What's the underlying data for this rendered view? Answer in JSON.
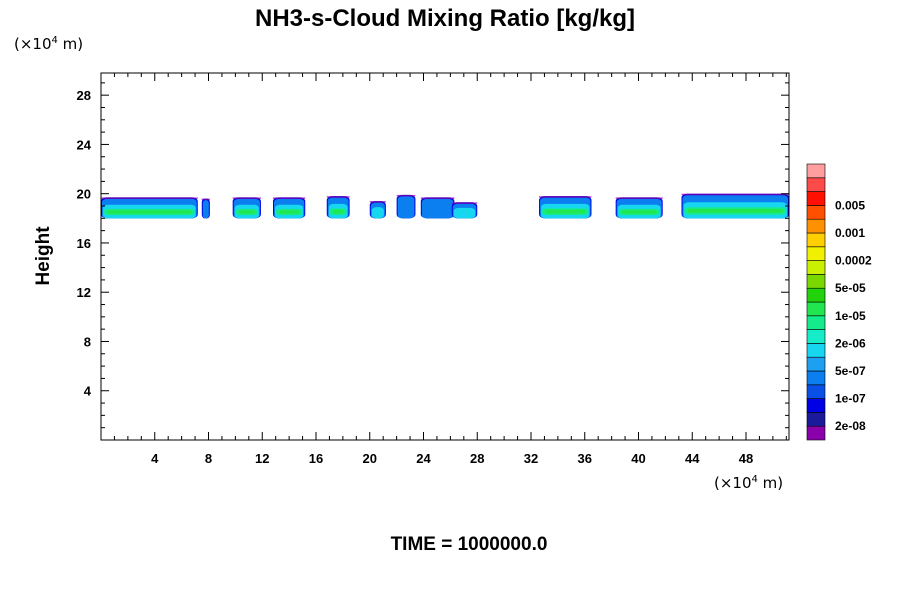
{
  "chart_data": {
    "type": "heatmap",
    "title": "NH3-s-Cloud Mixing Ratio [kg/kg]",
    "ylabel": "Height",
    "x_unit_prefix": "(×10",
    "x_unit_exp": "4",
    "x_unit_suffix": " m)",
    "y_unit_prefix": "(×10",
    "y_unit_exp": "4",
    "y_unit_suffix": " m)",
    "xlim": [
      0,
      51.2
    ],
    "ylim": [
      0,
      29.8
    ],
    "xticks": [
      4,
      8,
      12,
      16,
      20,
      24,
      28,
      32,
      36,
      40,
      44,
      48
    ],
    "yticks": [
      4,
      8,
      12,
      16,
      20,
      24,
      28
    ],
    "time_label": "TIME = 1000000.0",
    "colorbar": {
      "colors": [
        "#8a00aa",
        "#1a1a9a",
        "#0000e6",
        "#0b50e6",
        "#0b7ef0",
        "#1ea0f0",
        "#16d6f0",
        "#16ecc8",
        "#14ec8c",
        "#22e650",
        "#22d20a",
        "#7ad800",
        "#c8f000",
        "#f0f000",
        "#ffd000",
        "#ff9000",
        "#ff5000",
        "#ff1000",
        "#ff4a4a",
        "#ff9e9e"
      ],
      "labels": [
        {
          "index": 1,
          "text": "2e-08"
        },
        {
          "index": 3,
          "text": "1e-07"
        },
        {
          "index": 5,
          "text": "5e-07"
        },
        {
          "index": 7,
          "text": "2e-06"
        },
        {
          "index": 9,
          "text": "1e-05"
        },
        {
          "index": 11,
          "text": "5e-05"
        },
        {
          "index": 13,
          "text": "0.0002"
        },
        {
          "index": 15,
          "text": "0.001"
        },
        {
          "index": 17,
          "text": "0.005"
        }
      ]
    },
    "cloud_blobs": [
      {
        "x0": 0.0,
        "x1": 7.2,
        "ytop": 19.7,
        "core": 2
      },
      {
        "x0": 7.5,
        "x1": 8.1,
        "ytop": 19.6,
        "core": 0
      },
      {
        "x0": 9.8,
        "x1": 11.9,
        "ytop": 19.7,
        "core": 2
      },
      {
        "x0": 12.8,
        "x1": 15.2,
        "ytop": 19.7,
        "core": 2
      },
      {
        "x0": 16.8,
        "x1": 18.5,
        "ytop": 19.8,
        "core": 2
      },
      {
        "x0": 20.0,
        "x1": 21.2,
        "ytop": 19.4,
        "core": 1
      },
      {
        "x0": 22.0,
        "x1": 23.4,
        "ytop": 19.9,
        "core": 0
      },
      {
        "x0": 23.8,
        "x1": 26.3,
        "ytop": 19.7,
        "core": 0
      },
      {
        "x0": 26.1,
        "x1": 28.0,
        "ytop": 19.3,
        "core": 1
      },
      {
        "x0": 32.6,
        "x1": 36.5,
        "ytop": 19.8,
        "core": 2
      },
      {
        "x0": 38.3,
        "x1": 41.8,
        "ytop": 19.7,
        "core": 2
      },
      {
        "x0": 43.2,
        "x1": 51.2,
        "ytop": 20.0,
        "core": 2
      }
    ]
  }
}
